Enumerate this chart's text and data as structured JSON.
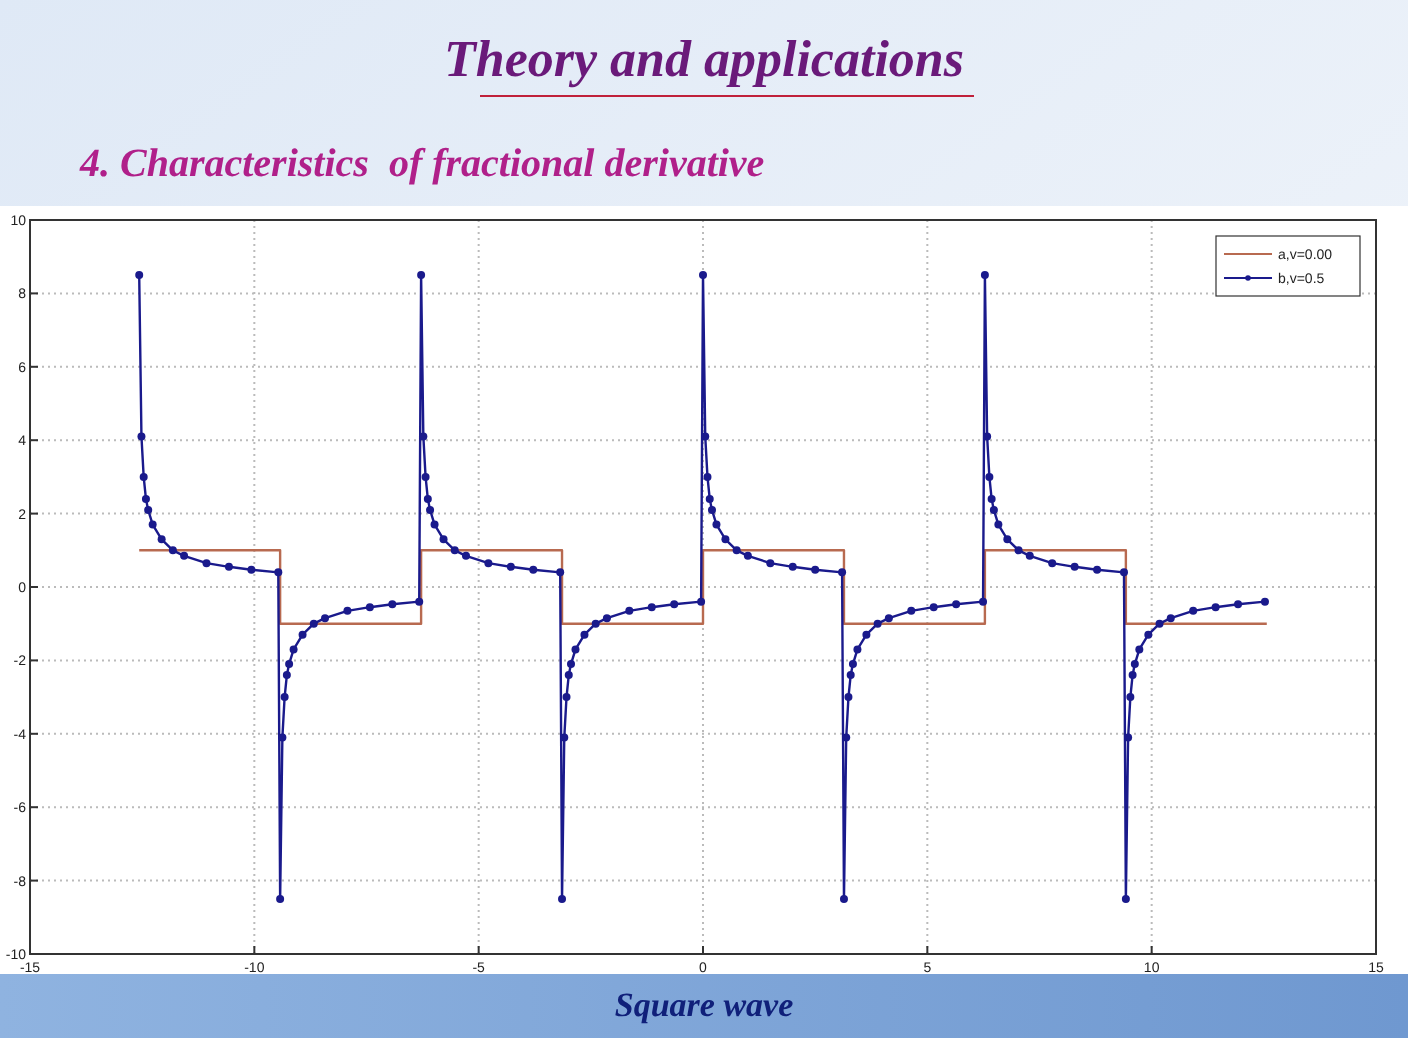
{
  "chart_data": {
    "type": "line",
    "title": "Theory and applications",
    "subtitle": "4. Characteristics  of fractional derivative",
    "annotations": [
      "Square wave"
    ],
    "xlim": [
      -15,
      15
    ],
    "xticks": [
      -15,
      -10,
      -5,
      0,
      5,
      10,
      15
    ],
    "ylim": [
      -10,
      10
    ],
    "yticks": [
      -10,
      -8,
      -6,
      -4,
      -2,
      0,
      2,
      4,
      6,
      8,
      10
    ],
    "grid": true,
    "legend": "top right",
    "series": [
      {
        "name": "a,v=0.00",
        "color": "#b86a50",
        "marker": "none",
        "x": [
          -12.566,
          -9.425,
          -9.425,
          -6.283,
          -6.283,
          -3.142,
          -3.142,
          0,
          0,
          3.142,
          3.142,
          6.283,
          6.283,
          9.425,
          9.425,
          12.566
        ],
        "values": [
          1,
          1,
          -1,
          -1,
          1,
          1,
          -1,
          -1,
          1,
          1,
          -1,
          -1,
          1,
          1,
          -1,
          -1
        ]
      },
      {
        "name": "b,v=0.5",
        "color": "#1a1a8c",
        "marker": "circle",
        "x": [
          -12.566,
          -12.516,
          -12.466,
          -12.416,
          -12.366,
          -12.266,
          -12.066,
          -11.816,
          -11.566,
          -11.066,
          -10.566,
          -10.066,
          -9.466,
          -9.425,
          -9.375,
          -9.325,
          -9.275,
          -9.225,
          -9.125,
          -8.925,
          -8.675,
          -8.425,
          -7.925,
          -7.425,
          -6.925,
          -6.325,
          -6.283,
          -6.233,
          -6.183,
          -6.133,
          -6.083,
          -5.983,
          -5.783,
          -5.533,
          -5.283,
          -4.783,
          -4.283,
          -3.783,
          -3.183,
          -3.142,
          -3.092,
          -3.042,
          -2.992,
          -2.942,
          -2.842,
          -2.642,
          -2.392,
          -2.142,
          -1.642,
          -1.142,
          -0.642,
          -0.042,
          0,
          0.05,
          0.1,
          0.15,
          0.2,
          0.3,
          0.5,
          0.75,
          1,
          1.5,
          2,
          2.5,
          3.1,
          3.142,
          3.192,
          3.242,
          3.292,
          3.342,
          3.442,
          3.642,
          3.892,
          4.142,
          4.642,
          5.142,
          5.642,
          6.242,
          6.283,
          6.333,
          6.383,
          6.433,
          6.483,
          6.583,
          6.783,
          7.033,
          7.283,
          7.783,
          8.283,
          8.783,
          9.383,
          9.425,
          9.475,
          9.525,
          9.575,
          9.625,
          9.725,
          9.925,
          10.175,
          10.425,
          10.925,
          11.425,
          11.925,
          12.525
        ],
        "values": [
          8.5,
          4.1,
          3,
          2.4,
          2.1,
          1.7,
          1.3,
          1,
          0.85,
          0.65,
          0.55,
          0.47,
          0.4,
          -8.5,
          -4.1,
          -3,
          -2.4,
          -2.1,
          -1.7,
          -1.3,
          -1,
          -0.85,
          -0.65,
          -0.55,
          -0.47,
          -0.4,
          8.5,
          4.1,
          3,
          2.4,
          2.1,
          1.7,
          1.3,
          1,
          0.85,
          0.65,
          0.55,
          0.47,
          0.4,
          -8.5,
          -4.1,
          -3,
          -2.4,
          -2.1,
          -1.7,
          -1.3,
          -1,
          -0.85,
          -0.65,
          -0.55,
          -0.47,
          -0.4,
          8.5,
          4.1,
          3,
          2.4,
          2.1,
          1.7,
          1.3,
          1,
          0.85,
          0.65,
          0.55,
          0.47,
          0.4,
          -8.5,
          -4.1,
          -3,
          -2.4,
          -2.1,
          -1.7,
          -1.3,
          -1,
          -0.85,
          -0.65,
          -0.55,
          -0.47,
          -0.4,
          8.5,
          4.1,
          3,
          2.4,
          2.1,
          1.7,
          1.3,
          1,
          0.85,
          0.65,
          0.55,
          0.47,
          0.4,
          -8.5,
          -4.1,
          -3,
          -2.4,
          -2.1,
          -1.7,
          -1.3,
          -1,
          -0.85,
          -0.65,
          -0.55,
          -0.47,
          -0.4
        ]
      }
    ]
  }
}
